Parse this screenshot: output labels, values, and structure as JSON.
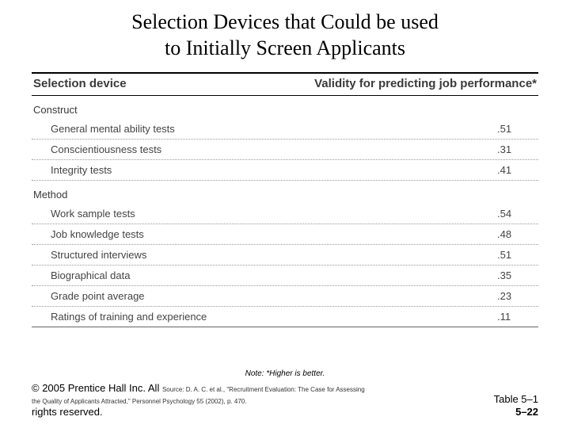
{
  "title_line1": "Selection Devices that Could be used",
  "title_line2": "to Initially Screen Applicants",
  "header": {
    "col1": "Selection device",
    "col2": "Validity for predicting job performance*"
  },
  "sections": [
    {
      "label": "Construct",
      "rows": [
        {
          "name": "General mental ability tests",
          "value": ".51"
        },
        {
          "name": "Conscientiousness tests",
          "value": ".31"
        },
        {
          "name": "Integrity tests",
          "value": ".41"
        }
      ]
    },
    {
      "label": "Method",
      "rows": [
        {
          "name": "Work sample tests",
          "value": ".54"
        },
        {
          "name": "Job knowledge tests",
          "value": ".48"
        },
        {
          "name": "Structured interviews",
          "value": ".51"
        },
        {
          "name": "Biographical data",
          "value": ".35"
        },
        {
          "name": "Grade point average",
          "value": ".23"
        },
        {
          "name": "Ratings of training and experience",
          "value": ".11"
        }
      ]
    }
  ],
  "footer": {
    "note": "Note: *Higher is better.",
    "copyright_line1": "© 2005 Prentice Hall Inc. All",
    "copyright_line2": "rights reserved.",
    "source_line1": "Source: D. A. C. et al., \"Recruitment Evaluation: The Case for Assessing",
    "source_line2": "the Quality of Applicants Attracted,\" Personnel Psychology 55 (2002), p. 470.",
    "table_ref": "Table 5–1",
    "page_ref": "5–22"
  },
  "colors": {
    "text_primary": "#000000",
    "text_secondary": "#3a3a3a",
    "row_text": "#444444",
    "border_strong": "#000000",
    "border_dotted": "#999999",
    "background": "#ffffff"
  },
  "typography": {
    "title_family": "Times New Roman",
    "title_size_pt": 20,
    "header_size_pt": 11,
    "row_size_pt": 10,
    "note_size_pt": 8
  }
}
